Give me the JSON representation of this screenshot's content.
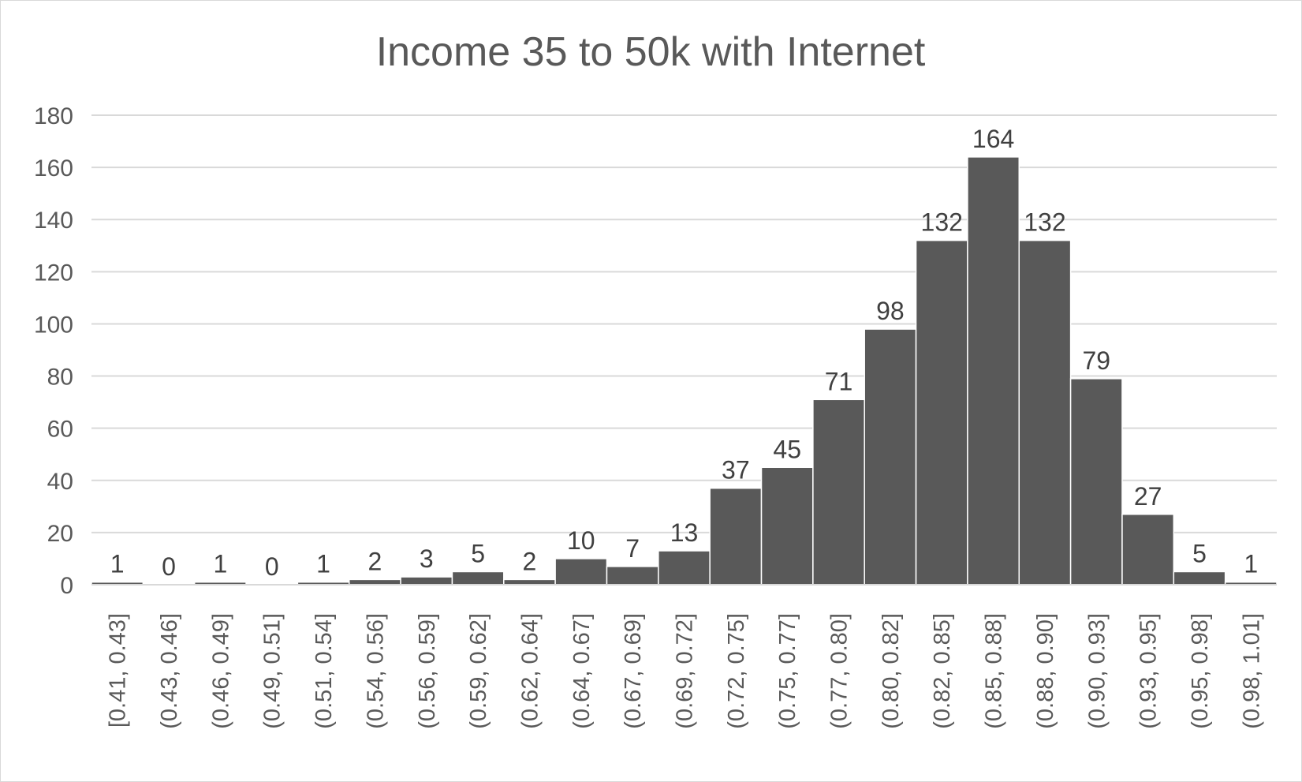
{
  "chart_data": {
    "type": "bar",
    "title": "Income 35 to 50k with Internet",
    "xlabel": "",
    "ylabel": "",
    "ylim": [
      0,
      180
    ],
    "yticks": [
      0,
      20,
      40,
      60,
      80,
      100,
      120,
      140,
      160,
      180
    ],
    "grid": true,
    "legend": "none",
    "colors": {
      "bar": "#595959",
      "bar_edge": "#ffffff",
      "grid": "#d9d9d9",
      "text": "#595959"
    },
    "categories": [
      "[0.41, 0.43]",
      "(0.43, 0.46]",
      "(0.46, 0.49]",
      "(0.49, 0.51]",
      "(0.51, 0.54]",
      "(0.54, 0.56]",
      "(0.56, 0.59]",
      "(0.59, 0.62]",
      "(0.62, 0.64]",
      "(0.64, 0.67]",
      "(0.67, 0.69]",
      "(0.69, 0.72]",
      "(0.72, 0.75]",
      "(0.75, 0.77]",
      "(0.77, 0.80]",
      "(0.80, 0.82]",
      "(0.82, 0.85]",
      "(0.85, 0.88]",
      "(0.88, 0.90]",
      "(0.90, 0.93]",
      "(0.93, 0.95]",
      "(0.95, 0.98]",
      "(0.98, 1.01]"
    ],
    "values": [
      1,
      0,
      1,
      0,
      1,
      2,
      3,
      5,
      2,
      10,
      7,
      13,
      37,
      45,
      71,
      98,
      132,
      164,
      132,
      79,
      27,
      5,
      1
    ]
  }
}
